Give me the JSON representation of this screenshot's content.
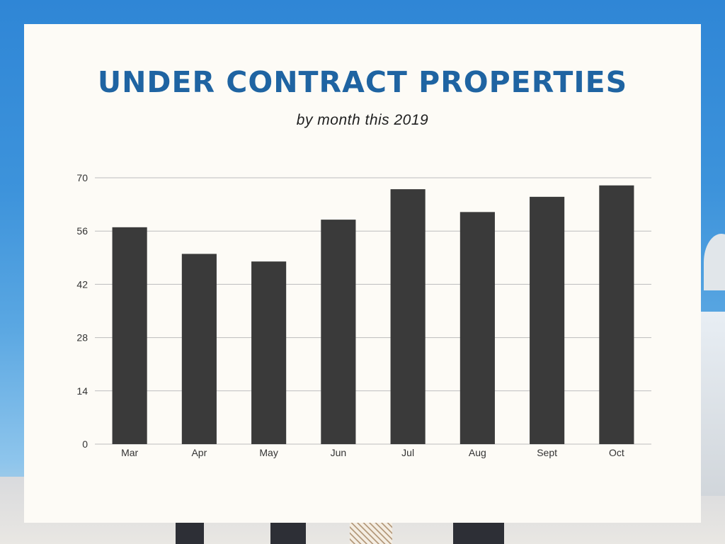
{
  "title": "UNDER CONTRACT PROPERTIES",
  "subtitle": "by month this 2019",
  "colors": {
    "title": "#1f64a2",
    "bar": "#3a3a3a",
    "grid": "#bdbdbd",
    "card": "#fdfbf6"
  },
  "chart_data": {
    "type": "bar",
    "categories": [
      "Mar",
      "Apr",
      "May",
      "Jun",
      "Jul",
      "Aug",
      "Sept",
      "Oct"
    ],
    "values": [
      57,
      50,
      48,
      59,
      67,
      61,
      65,
      68
    ],
    "yticks": [
      0,
      14,
      28,
      42,
      56,
      70
    ],
    "ylim": [
      0,
      70
    ],
    "grid": true,
    "legend": "none"
  }
}
